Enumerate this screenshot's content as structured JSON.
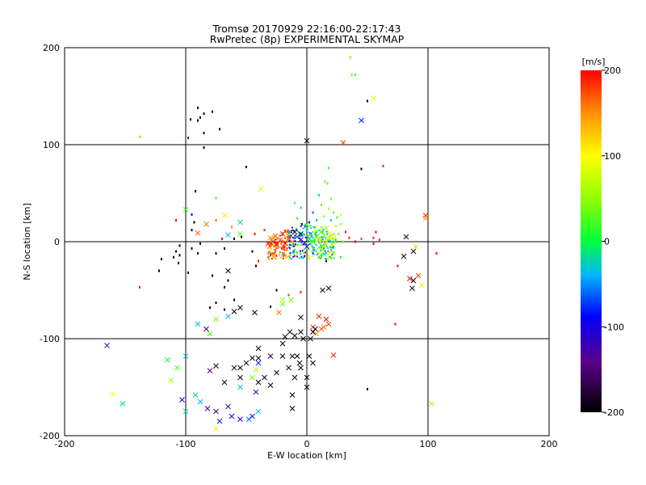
{
  "chart_data": {
    "type": "scatter",
    "title": "Tromsø 20170929 22:16:00-22:17:43",
    "subtitle": "RwPretec (8p) EXPERIMENTAL SKYMAP",
    "xlabel": "E-W location [km]",
    "ylabel": "N-S location [km]",
    "xlim": [
      -200,
      200
    ],
    "ylim": [
      -200,
      200
    ],
    "x_ticks": [
      "-200",
      "-100",
      "0",
      "100",
      "200"
    ],
    "y_ticks": [
      "-200",
      "-100",
      "0",
      "100",
      "200"
    ],
    "grid": true,
    "colorbar": {
      "label": "[m/s]",
      "range": [
        -200,
        200
      ],
      "ticks": [
        "200",
        "100",
        "0",
        "-100",
        "-200"
      ]
    },
    "points_x_marks": [
      {
        "x": 0,
        "y": 104,
        "v": -200
      },
      {
        "x": 30,
        "y": 102,
        "v": 180
      },
      {
        "x": 55,
        "y": 148,
        "v": 90
      },
      {
        "x": 45,
        "y": 125,
        "v": -80
      },
      {
        "x": -38,
        "y": 54,
        "v": 110
      },
      {
        "x": -100,
        "y": 33,
        "v": 20
      },
      {
        "x": -68,
        "y": 27,
        "v": 110
      },
      {
        "x": -55,
        "y": 20,
        "v": -20
      },
      {
        "x": -83,
        "y": 18,
        "v": 160
      },
      {
        "x": -65,
        "y": 7,
        "v": -40
      },
      {
        "x": -55,
        "y": 8,
        "v": 40
      },
      {
        "x": -90,
        "y": 9,
        "v": 170
      },
      {
        "x": 98,
        "y": 27,
        "v": 190
      },
      {
        "x": 98,
        "y": 24,
        "v": 150
      },
      {
        "x": 90,
        "y": -5,
        "v": 120
      },
      {
        "x": 82,
        "y": 5,
        "v": -190
      },
      {
        "x": 80,
        "y": -15,
        "v": -190
      },
      {
        "x": 88,
        "y": -10,
        "v": -190
      },
      {
        "x": 85,
        "y": -38,
        "v": 200
      },
      {
        "x": 88,
        "y": -40,
        "v": -200
      },
      {
        "x": 95,
        "y": -45,
        "v": 110
      },
      {
        "x": 92,
        "y": -35,
        "v": 180
      },
      {
        "x": 87,
        "y": -48,
        "v": -190
      },
      {
        "x": -65,
        "y": -30,
        "v": -190
      },
      {
        "x": -20,
        "y": -64,
        "v": 30
      },
      {
        "x": -13,
        "y": -60,
        "v": 40
      },
      {
        "x": -20,
        "y": -60,
        "v": 60
      },
      {
        "x": -23,
        "y": -73,
        "v": 160
      },
      {
        "x": -5,
        "y": -78,
        "v": -190
      },
      {
        "x": 10,
        "y": -77,
        "v": 190
      },
      {
        "x": 18,
        "y": -85,
        "v": 180
      },
      {
        "x": 12,
        "y": -90,
        "v": 170
      },
      {
        "x": 8,
        "y": -95,
        "v": 140
      },
      {
        "x": 16,
        "y": -80,
        "v": 200
      },
      {
        "x": 14,
        "y": -88,
        "v": 160
      },
      {
        "x": 5,
        "y": -88,
        "v": 180
      },
      {
        "x": 7,
        "y": -90,
        "v": -170
      },
      {
        "x": 5,
        "y": -93,
        "v": -200
      },
      {
        "x": 13,
        "y": -50,
        "v": -190
      },
      {
        "x": 18,
        "y": -48,
        "v": -190
      },
      {
        "x": -5,
        "y": -93,
        "v": -200
      },
      {
        "x": -10,
        "y": -97,
        "v": -190
      },
      {
        "x": -14,
        "y": -93,
        "v": -180
      },
      {
        "x": -3,
        "y": -100,
        "v": -200
      },
      {
        "x": 3,
        "y": -100,
        "v": -190
      },
      {
        "x": -20,
        "y": -105,
        "v": -200
      },
      {
        "x": -18,
        "y": -98,
        "v": -190
      },
      {
        "x": -8,
        "y": -118,
        "v": -200
      },
      {
        "x": -12,
        "y": -118,
        "v": -190
      },
      {
        "x": 2,
        "y": -118,
        "v": -200
      },
      {
        "x": 5,
        "y": -125,
        "v": -190
      },
      {
        "x": -6,
        "y": -125,
        "v": -200
      },
      {
        "x": -20,
        "y": -118,
        "v": -190
      },
      {
        "x": -30,
        "y": -118,
        "v": -180
      },
      {
        "x": -25,
        "y": -135,
        "v": -190
      },
      {
        "x": -10,
        "y": -140,
        "v": -200
      },
      {
        "x": 0,
        "y": -140,
        "v": -190
      },
      {
        "x": -5,
        "y": -130,
        "v": -200
      },
      {
        "x": -15,
        "y": -130,
        "v": -190
      },
      {
        "x": -35,
        "y": -140,
        "v": -190
      },
      {
        "x": -30,
        "y": -148,
        "v": -200
      },
      {
        "x": -40,
        "y": -145,
        "v": -200
      },
      {
        "x": 0,
        "y": -150,
        "v": -190
      },
      {
        "x": -12,
        "y": -158,
        "v": -200
      },
      {
        "x": -12,
        "y": -172,
        "v": -200
      },
      {
        "x": -40,
        "y": -120,
        "v": -190
      },
      {
        "x": -45,
        "y": -120,
        "v": -190
      },
      {
        "x": -50,
        "y": -125,
        "v": -180
      },
      {
        "x": -42,
        "y": -132,
        "v": 70
      },
      {
        "x": -45,
        "y": -140,
        "v": 40
      },
      {
        "x": -60,
        "y": -130,
        "v": -180
      },
      {
        "x": -75,
        "y": -128,
        "v": -190
      },
      {
        "x": -68,
        "y": -145,
        "v": -200
      },
      {
        "x": -55,
        "y": -140,
        "v": -190
      },
      {
        "x": -42,
        "y": -155,
        "v": -120
      },
      {
        "x": -45,
        "y": -180,
        "v": -80
      },
      {
        "x": -40,
        "y": -175,
        "v": -30
      },
      {
        "x": -48,
        "y": -183,
        "v": -60
      },
      {
        "x": -55,
        "y": -183,
        "v": -100
      },
      {
        "x": -62,
        "y": -180,
        "v": -100
      },
      {
        "x": -65,
        "y": -170,
        "v": -120
      },
      {
        "x": -75,
        "y": -175,
        "v": -160
      },
      {
        "x": -72,
        "y": -185,
        "v": -80
      },
      {
        "x": -82,
        "y": -172,
        "v": -150
      },
      {
        "x": -75,
        "y": -193,
        "v": 110
      },
      {
        "x": -88,
        "y": -165,
        "v": -40
      },
      {
        "x": -92,
        "y": -158,
        "v": -20
      },
      {
        "x": -103,
        "y": -163,
        "v": -100
      },
      {
        "x": -100,
        "y": -118,
        "v": -30
      },
      {
        "x": -107,
        "y": -130,
        "v": 20
      },
      {
        "x": -112,
        "y": -143,
        "v": 60
      },
      {
        "x": -115,
        "y": -122,
        "v": 0
      },
      {
        "x": -100,
        "y": -175,
        "v": -20
      },
      {
        "x": -152,
        "y": -167,
        "v": -20
      },
      {
        "x": -160,
        "y": -157,
        "v": 100
      },
      {
        "x": -165,
        "y": -107,
        "v": -140
      },
      {
        "x": -90,
        "y": -85,
        "v": -30
      },
      {
        "x": -83,
        "y": -90,
        "v": -150
      },
      {
        "x": -75,
        "y": -80,
        "v": 40
      },
      {
        "x": -65,
        "y": -77,
        "v": -30
      },
      {
        "x": -60,
        "y": -72,
        "v": -200
      },
      {
        "x": -55,
        "y": -68,
        "v": -190
      },
      {
        "x": -43,
        "y": -73,
        "v": -200
      },
      {
        "x": -80,
        "y": -95,
        "v": 20
      },
      {
        "x": -55,
        "y": -130,
        "v": -200
      },
      {
        "x": -55,
        "y": -150,
        "v": -30
      },
      {
        "x": -80,
        "y": -133,
        "v": -130
      },
      {
        "x": 22,
        "y": -117,
        "v": 190
      },
      {
        "x": 103,
        "y": -167,
        "v": 60
      },
      {
        "x": -40,
        "y": -125,
        "v": -80
      },
      {
        "x": -40,
        "y": -110,
        "v": -200
      },
      {
        "x": -25,
        "y": -3,
        "v": 200
      },
      {
        "x": -28,
        "y": 0,
        "v": 190
      },
      {
        "x": -30,
        "y": 4,
        "v": 150
      },
      {
        "x": -22,
        "y": 2,
        "v": 180
      },
      {
        "x": -18,
        "y": -2,
        "v": 200
      },
      {
        "x": -15,
        "y": 3,
        "v": 170
      },
      {
        "x": -12,
        "y": 0,
        "v": 130
      },
      {
        "x": -8,
        "y": 5,
        "v": -60
      },
      {
        "x": -5,
        "y": 2,
        "v": -100
      },
      {
        "x": -2,
        "y": -1,
        "v": -120
      },
      {
        "x": 2,
        "y": 3,
        "v": -30
      },
      {
        "x": 5,
        "y": 0,
        "v": 0
      },
      {
        "x": 8,
        "y": 5,
        "v": 20
      },
      {
        "x": 12,
        "y": 2,
        "v": 40
      },
      {
        "x": 15,
        "y": -2,
        "v": 60
      },
      {
        "x": 18,
        "y": 4,
        "v": 80
      },
      {
        "x": -20,
        "y": 8,
        "v": 190
      },
      {
        "x": -10,
        "y": 10,
        "v": -200
      },
      {
        "x": -5,
        "y": 8,
        "v": -150
      },
      {
        "x": 0,
        "y": -5,
        "v": -80
      },
      {
        "x": 10,
        "y": -6,
        "v": 30
      },
      {
        "x": -32,
        "y": -2,
        "v": 200
      },
      {
        "x": -26,
        "y": 6,
        "v": 170
      },
      {
        "x": 3,
        "y": 8,
        "v": -50
      },
      {
        "x": 12,
        "y": 10,
        "v": 10
      },
      {
        "x": 16,
        "y": 14,
        "v": 50
      },
      {
        "x": 20,
        "y": 6,
        "v": 90
      }
    ],
    "points_small": [
      {
        "x": 36,
        "y": 190,
        "v": 40
      },
      {
        "x": 37,
        "y": 172,
        "v": 40
      },
      {
        "x": 40,
        "y": 172,
        "v": 30
      },
      {
        "x": 50,
        "y": 145,
        "v": -200
      },
      {
        "x": 63,
        "y": 78,
        "v": 190
      },
      {
        "x": 45,
        "y": 75,
        "v": -200
      },
      {
        "x": 18,
        "y": 76,
        "v": 30
      },
      {
        "x": 17,
        "y": 60,
        "v": 30
      },
      {
        "x": 15,
        "y": 62,
        "v": 40
      },
      {
        "x": -90,
        "y": 138,
        "v": -200
      },
      {
        "x": -88,
        "y": 128,
        "v": -200
      },
      {
        "x": -85,
        "y": 132,
        "v": -200
      },
      {
        "x": -90,
        "y": 125,
        "v": -200
      },
      {
        "x": -96,
        "y": 126,
        "v": -200
      },
      {
        "x": -78,
        "y": 134,
        "v": -200
      },
      {
        "x": -72,
        "y": 116,
        "v": -200
      },
      {
        "x": -85,
        "y": 112,
        "v": -200
      },
      {
        "x": -138,
        "y": 108,
        "v": 40
      },
      {
        "x": -98,
        "y": 107,
        "v": -150
      },
      {
        "x": -85,
        "y": 97,
        "v": -200
      },
      {
        "x": -50,
        "y": 77,
        "v": -200
      },
      {
        "x": -92,
        "y": 52,
        "v": -200
      },
      {
        "x": -95,
        "y": 28,
        "v": -100
      },
      {
        "x": -108,
        "y": 22,
        "v": 200
      },
      {
        "x": -93,
        "y": 20,
        "v": -200
      },
      {
        "x": -95,
        "y": 12,
        "v": -190
      },
      {
        "x": -75,
        "y": 22,
        "v": 170
      },
      {
        "x": -62,
        "y": 15,
        "v": 150
      },
      {
        "x": -60,
        "y": 3,
        "v": -200
      },
      {
        "x": -54,
        "y": 5,
        "v": -200
      },
      {
        "x": -70,
        "y": 3,
        "v": 200
      },
      {
        "x": -68,
        "y": -7,
        "v": -200
      },
      {
        "x": -75,
        "y": -12,
        "v": -190
      },
      {
        "x": -88,
        "y": -2,
        "v": -200
      },
      {
        "x": -95,
        "y": -7,
        "v": -200
      },
      {
        "x": -90,
        "y": -12,
        "v": -190
      },
      {
        "x": -105,
        "y": -4,
        "v": -200
      },
      {
        "x": -108,
        "y": -10,
        "v": -190
      },
      {
        "x": -105,
        "y": -14,
        "v": -200
      },
      {
        "x": -110,
        "y": -16,
        "v": -190
      },
      {
        "x": -106,
        "y": -22,
        "v": -200
      },
      {
        "x": -120,
        "y": -18,
        "v": -200
      },
      {
        "x": -98,
        "y": -32,
        "v": -190
      },
      {
        "x": -138,
        "y": -47,
        "v": 190
      },
      {
        "x": -78,
        "y": -35,
        "v": -200
      },
      {
        "x": -65,
        "y": -40,
        "v": -200
      },
      {
        "x": -68,
        "y": -47,
        "v": -190
      },
      {
        "x": -75,
        "y": -63,
        "v": -200
      },
      {
        "x": -80,
        "y": -68,
        "v": -200
      },
      {
        "x": -68,
        "y": -70,
        "v": -190
      },
      {
        "x": -60,
        "y": -60,
        "v": -200
      },
      {
        "x": -30,
        "y": -67,
        "v": -200
      },
      {
        "x": -15,
        "y": -55,
        "v": 180
      },
      {
        "x": -25,
        "y": -50,
        "v": -200
      },
      {
        "x": -40,
        "y": -20,
        "v": 190
      },
      {
        "x": -45,
        "y": -10,
        "v": -200
      },
      {
        "x": -42,
        "y": -25,
        "v": -200
      },
      {
        "x": -75,
        "y": 45,
        "v": 20
      },
      {
        "x": -43,
        "y": 8,
        "v": 200
      },
      {
        "x": -35,
        "y": 12,
        "v": 190
      },
      {
        "x": 28,
        "y": 18,
        "v": 60
      },
      {
        "x": 32,
        "y": 10,
        "v": 200
      },
      {
        "x": 35,
        "y": 4,
        "v": 190
      },
      {
        "x": 40,
        "y": 0,
        "v": 200
      },
      {
        "x": 45,
        "y": 3,
        "v": 180
      },
      {
        "x": 55,
        "y": 4,
        "v": 190
      },
      {
        "x": 55,
        "y": -2,
        "v": 200
      },
      {
        "x": 60,
        "y": 2,
        "v": 180
      },
      {
        "x": 57,
        "y": 10,
        "v": 200
      },
      {
        "x": 75,
        "y": -25,
        "v": 200
      },
      {
        "x": 107,
        "y": -12,
        "v": 200
      },
      {
        "x": 73,
        "y": -85,
        "v": 200
      },
      {
        "x": 50,
        "y": -152,
        "v": -200
      },
      {
        "x": -122,
        "y": -30,
        "v": -200
      },
      {
        "x": -5,
        "y": -52,
        "v": 190
      },
      {
        "x": -10,
        "y": 40,
        "v": 20
      },
      {
        "x": -5,
        "y": 35,
        "v": -20
      },
      {
        "x": 5,
        "y": 30,
        "v": -60
      },
      {
        "x": 12,
        "y": 38,
        "v": 40
      },
      {
        "x": 18,
        "y": 34,
        "v": 60
      },
      {
        "x": 22,
        "y": 30,
        "v": 30
      },
      {
        "x": 25,
        "y": 25,
        "v": 20
      },
      {
        "x": 20,
        "y": 22,
        "v": -20
      },
      {
        "x": 14,
        "y": 26,
        "v": 50
      },
      {
        "x": 8,
        "y": 22,
        "v": -40
      },
      {
        "x": 2,
        "y": 20,
        "v": -80
      },
      {
        "x": -4,
        "y": 18,
        "v": -120
      },
      {
        "x": -8,
        "y": 24,
        "v": 10
      },
      {
        "x": 24,
        "y": 16,
        "v": 70
      },
      {
        "x": 26,
        "y": 8,
        "v": 40
      },
      {
        "x": 24,
        "y": 0,
        "v": 0
      },
      {
        "x": 22,
        "y": -6,
        "v": -40
      },
      {
        "x": 18,
        "y": -12,
        "v": 100
      },
      {
        "x": 12,
        "y": -14,
        "v": -10
      },
      {
        "x": 5,
        "y": -12,
        "v": -70
      },
      {
        "x": -2,
        "y": -15,
        "v": -130
      },
      {
        "x": -8,
        "y": -12,
        "v": 30
      },
      {
        "x": -14,
        "y": -14,
        "v": 60
      },
      {
        "x": -20,
        "y": -12,
        "v": -30
      },
      {
        "x": -26,
        "y": -10,
        "v": 170
      },
      {
        "x": -30,
        "y": -14,
        "v": -60
      },
      {
        "x": 16,
        "y": -20,
        "v": -170
      },
      {
        "x": 20,
        "y": 44,
        "v": 40
      },
      {
        "x": 10,
        "y": 48,
        "v": -10
      },
      {
        "x": 28,
        "y": -16,
        "v": 10
      },
      {
        "x": 30,
        "y": 0,
        "v": 40
      },
      {
        "x": 28,
        "y": 28,
        "v": 80
      }
    ]
  }
}
